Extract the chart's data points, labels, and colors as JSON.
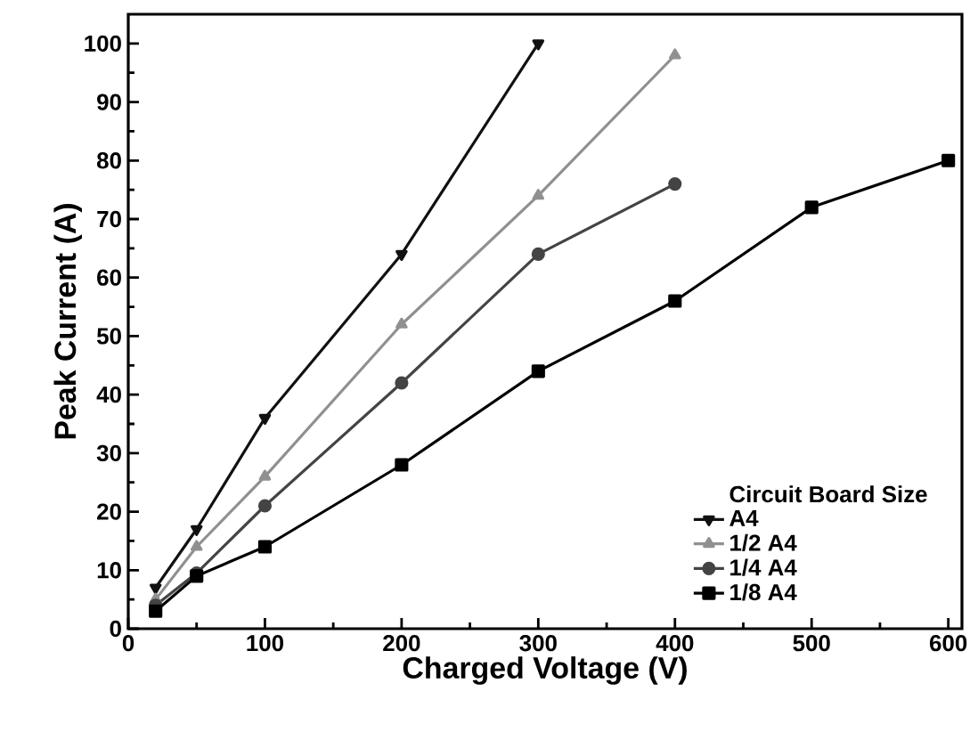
{
  "chart_data": {
    "type": "line",
    "xlabel": "Charged Voltage (V)",
    "ylabel": "Peak Current (A)",
    "legend_title": "Circuit Board Size",
    "legend": "bottom right",
    "xlim": [
      0,
      610
    ],
    "ylim": [
      0,
      105
    ],
    "xticks": [
      0,
      100,
      200,
      300,
      400,
      500,
      600
    ],
    "yticks": [
      0,
      10,
      20,
      30,
      40,
      50,
      60,
      70,
      80,
      90,
      100
    ],
    "line_style": "solid",
    "series": [
      {
        "name": "A4",
        "color": "#111111",
        "marker": "triangle",
        "x": [
          20,
          50,
          100,
          200,
          300
        ],
        "values": [
          7,
          17,
          36,
          64,
          100
        ]
      },
      {
        "name": "1/2 A4",
        "color": "#909090",
        "marker": "triangle",
        "x": [
          20,
          50,
          100,
          200,
          300,
          400
        ],
        "values": [
          5,
          14,
          26,
          52,
          74,
          98
        ]
      },
      {
        "name": "1/4 A4",
        "color": "#444444",
        "marker": "circle",
        "x": [
          20,
          50,
          100,
          200,
          300,
          400
        ],
        "values": [
          4,
          9.5,
          21,
          42,
          64,
          76
        ]
      },
      {
        "name": "1/8 A4",
        "color": "#000000",
        "marker": "square",
        "x": [
          20,
          50,
          100,
          200,
          300,
          400,
          500,
          600
        ],
        "values": [
          3,
          9,
          14,
          28,
          44,
          56,
          72,
          80
        ]
      }
    ]
  }
}
